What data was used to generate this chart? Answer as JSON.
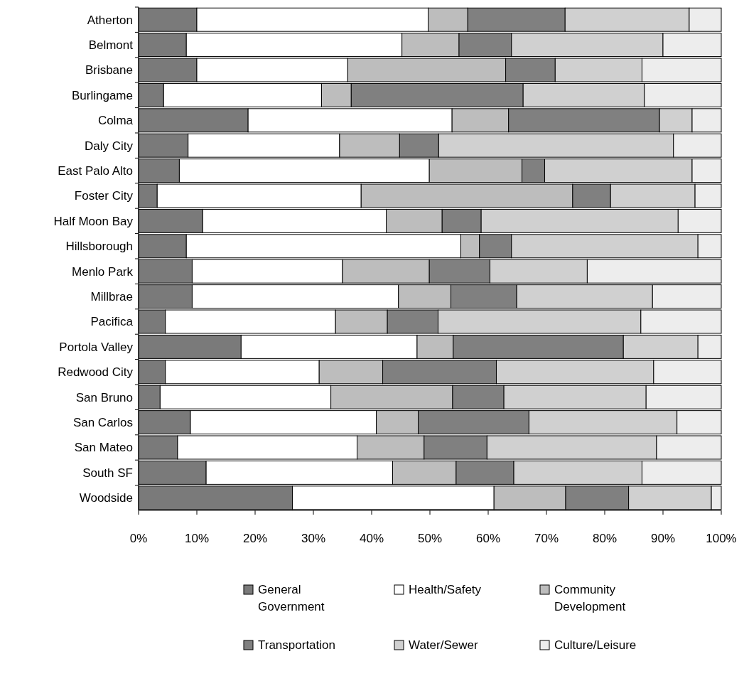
{
  "chart_data": {
    "type": "bar",
    "orientation": "horizontal",
    "stacked": true,
    "categories": [
      "Atherton",
      "Belmont",
      "Brisbane",
      "Burlingame",
      "Colma",
      "Daly City",
      "East Palo Alto",
      "Foster City",
      "Half Moon Bay",
      "Hillsborough",
      "Menlo Park",
      "Millbrae",
      "Pacifica",
      "Portola Valley",
      "Redwood City",
      "San Bruno",
      "San Carlos",
      "San Mateo",
      "South SF",
      "Woodside"
    ],
    "series": [
      {
        "name": "General Government",
        "color": "#7a7a7a",
        "values": [
          10,
          8.2,
          10,
          4.3,
          18.8,
          8.5,
          7,
          3.2,
          11,
          8.2,
          9.2,
          9.2,
          4.6,
          17.6,
          4.6,
          3.7,
          8.9,
          6.7,
          11.6,
          26.4
        ]
      },
      {
        "name": "Health/Safety",
        "color": "#ffffff",
        "values": [
          39.7,
          37,
          25.9,
          27.1,
          35,
          26,
          42.9,
          35,
          31.5,
          47.1,
          25.8,
          35.4,
          29.2,
          30.2,
          26.4,
          29.3,
          31.9,
          30.8,
          32,
          34.6
        ]
      },
      {
        "name": "Community Development",
        "color": "#bdbdbd",
        "values": [
          6.8,
          9.8,
          27.1,
          5.1,
          9.7,
          10.3,
          15.9,
          36.3,
          9.6,
          3.2,
          14.9,
          9,
          8.9,
          6.2,
          10.9,
          20.9,
          7.2,
          11.5,
          10.9,
          12.3
        ]
      },
      {
        "name": "Transportation",
        "color": "#808080",
        "values": [
          16.7,
          9,
          8.5,
          29.5,
          25.9,
          6.7,
          3.9,
          6.5,
          6.7,
          5.5,
          10.4,
          11.3,
          8.7,
          29.2,
          19.5,
          8.8,
          19,
          10.8,
          9.9,
          10.8
        ]
      },
      {
        "name": "Water/Sewer",
        "color": "#d0d0d0",
        "values": [
          21.3,
          26,
          14.9,
          20.8,
          5.6,
          40.3,
          25.3,
          14.5,
          33.8,
          32,
          16.7,
          23.3,
          34.8,
          12.8,
          27,
          24.4,
          25.4,
          29.1,
          22,
          14.2
        ]
      },
      {
        "name": "Culture/Leisure",
        "color": "#ededed",
        "values": [
          5.5,
          10,
          13.6,
          13.2,
          5,
          8.2,
          5,
          4.5,
          7.4,
          4,
          23,
          11.8,
          13.8,
          4,
          11.6,
          12.9,
          7.6,
          11.1,
          13.6,
          1.7
        ]
      }
    ],
    "xlim": [
      0,
      100
    ],
    "xticks": [
      {
        "value": 0,
        "label": "0%"
      },
      {
        "value": 10,
        "label": "10%"
      },
      {
        "value": 20,
        "label": "20%"
      },
      {
        "value": 30,
        "label": "30%"
      },
      {
        "value": 40,
        "label": "40%"
      },
      {
        "value": 50,
        "label": "50%"
      },
      {
        "value": 60,
        "label": "60%"
      },
      {
        "value": 70,
        "label": "70%"
      },
      {
        "value": 80,
        "label": "80%"
      },
      {
        "value": 90,
        "label": "90%"
      },
      {
        "value": 100,
        "label": "100%"
      }
    ],
    "grid": false,
    "legend": "bottom"
  }
}
